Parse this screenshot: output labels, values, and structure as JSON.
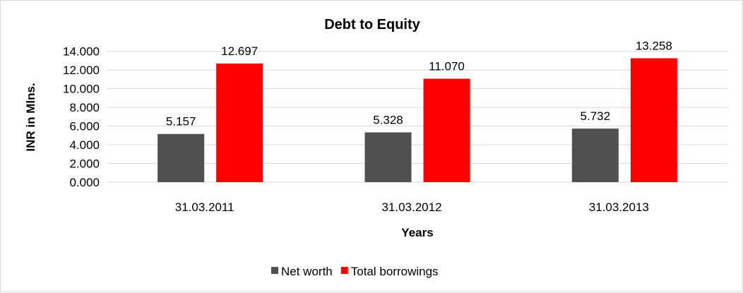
{
  "chart_data": {
    "type": "bar",
    "title": "Debt to Equity",
    "xlabel": "Years",
    "ylabel": "INR in Mlns.",
    "categories": [
      "31.03.2011",
      "31.03.2012",
      "31.03.2013"
    ],
    "series": [
      {
        "name": "Net worth",
        "values": [
          5.157,
          5.328,
          5.732
        ],
        "labels": [
          "5.157",
          "5.328",
          "5.732"
        ],
        "color": "#505050"
      },
      {
        "name": "Total borrowings",
        "values": [
          12.697,
          11.07,
          13.258
        ],
        "labels": [
          "12.697",
          "11.070",
          "13.258"
        ],
        "color": "#ff0000"
      }
    ],
    "ylim": [
      0,
      14
    ],
    "yticks": [
      "0.000",
      "2.000",
      "4.000",
      "6.000",
      "8.000",
      "10.000",
      "12.000",
      "14.000"
    ],
    "grid": true,
    "legend": "bottom"
  }
}
